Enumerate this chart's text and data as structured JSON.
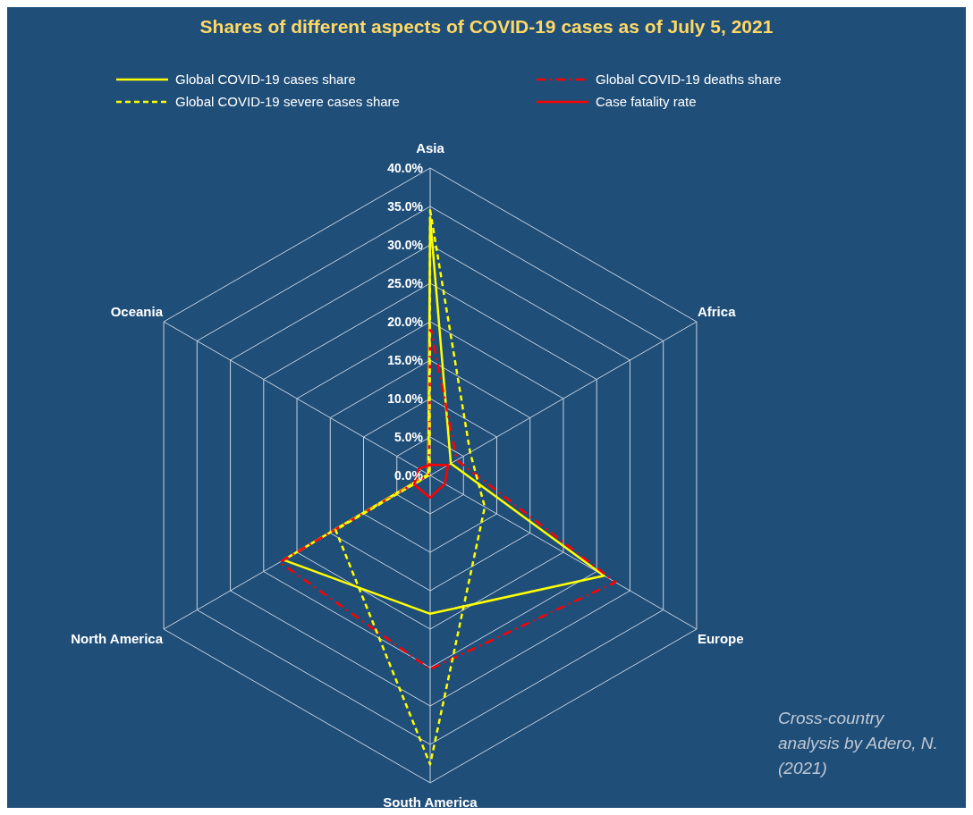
{
  "chart_data": {
    "type": "radar",
    "title": "Shares of different aspects of COVID-19 cases as of July 5, 2021",
    "categories": [
      "Asia",
      "Africa",
      "Europe",
      "South America",
      "North America",
      "Oceania"
    ],
    "series": [
      {
        "name": "Global COVID-19 cases share",
        "color": "#ffff00",
        "line_style": "solid",
        "values": [
          33.5,
          3.1,
          26.1,
          18.0,
          22.0,
          0.3
        ]
      },
      {
        "name": "Global COVID-19 deaths share",
        "color": "#ff0000",
        "line_style": "dashdot",
        "values": [
          19.5,
          4.0,
          27.8,
          25.2,
          22.6,
          0.2
        ]
      },
      {
        "name": "Global COVID-19 severe cases share",
        "color": "#ffff00",
        "line_style": "dashed",
        "values": [
          34.5,
          6.0,
          8.2,
          37.6,
          14.2,
          0.1
        ]
      },
      {
        "name": "Case fatality rate",
        "color": "#ff0000",
        "line_style": "solid",
        "values": [
          1.4,
          2.7,
          2.2,
          2.9,
          2.4,
          1.7
        ]
      }
    ],
    "ylim": [
      0,
      40
    ],
    "yticks": [
      {
        "value": 0,
        "label": "0.0%"
      },
      {
        "value": 5,
        "label": "5.0%"
      },
      {
        "value": 10,
        "label": "10.0%"
      },
      {
        "value": 15,
        "label": "15.0%"
      },
      {
        "value": 20,
        "label": "20.0%"
      },
      {
        "value": 25,
        "label": "25.0%"
      },
      {
        "value": 30,
        "label": "30.0%"
      },
      {
        "value": 35,
        "label": "35.0%"
      },
      {
        "value": 40,
        "label": "40.0%"
      }
    ],
    "grid": true,
    "legend": "top",
    "marker": "none",
    "annotations": [
      "Cross-country analysis by Adero, N. (2021)"
    ]
  }
}
